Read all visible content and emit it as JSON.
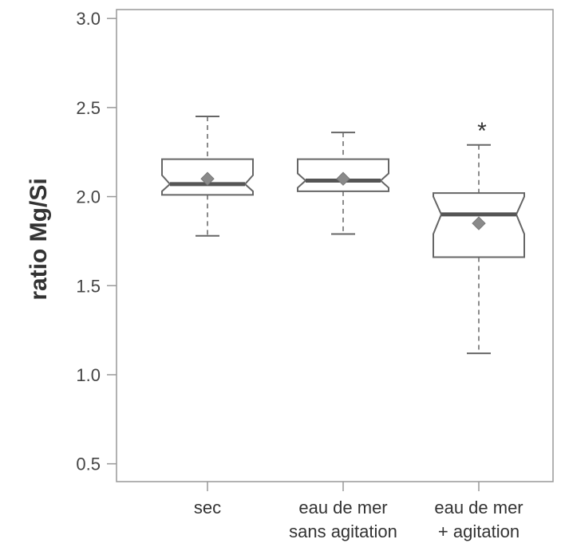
{
  "chart_data": {
    "type": "box",
    "ylabel": "ratio Mg/Si",
    "ylim": [
      0.4,
      3.05
    ],
    "yticks": [
      "3.0",
      "2.5",
      "2.0",
      "1.5",
      "1.0",
      "0.5"
    ],
    "ytick_values": [
      3.0,
      2.5,
      2.0,
      1.5,
      1.0,
      0.5
    ],
    "categories": [
      {
        "lines": [
          "sec"
        ]
      },
      {
        "lines": [
          "eau de mer",
          "sans agitation"
        ]
      },
      {
        "lines": [
          "eau de mer",
          "+ agitation"
        ]
      }
    ],
    "boxes": [
      {
        "min": 1.78,
        "q1": 2.01,
        "median": 2.07,
        "q3": 2.21,
        "max": 2.45,
        "mean": 2.1,
        "notch_low": 2.03,
        "notch_high": 2.12,
        "significance": ""
      },
      {
        "min": 1.79,
        "q1": 2.03,
        "median": 2.09,
        "q3": 2.21,
        "max": 2.36,
        "mean": 2.1,
        "notch_low": 2.05,
        "notch_high": 2.13,
        "significance": ""
      },
      {
        "min": 1.12,
        "q1": 1.66,
        "median": 1.9,
        "q3": 2.02,
        "max": 2.29,
        "mean": 1.85,
        "notch_low": 1.79,
        "notch_high": 2.0,
        "significance": "*"
      }
    ],
    "colors": {
      "box": "#666666",
      "median": "#555555",
      "mean": "#8a8a8a",
      "frame": "#999999"
    }
  }
}
